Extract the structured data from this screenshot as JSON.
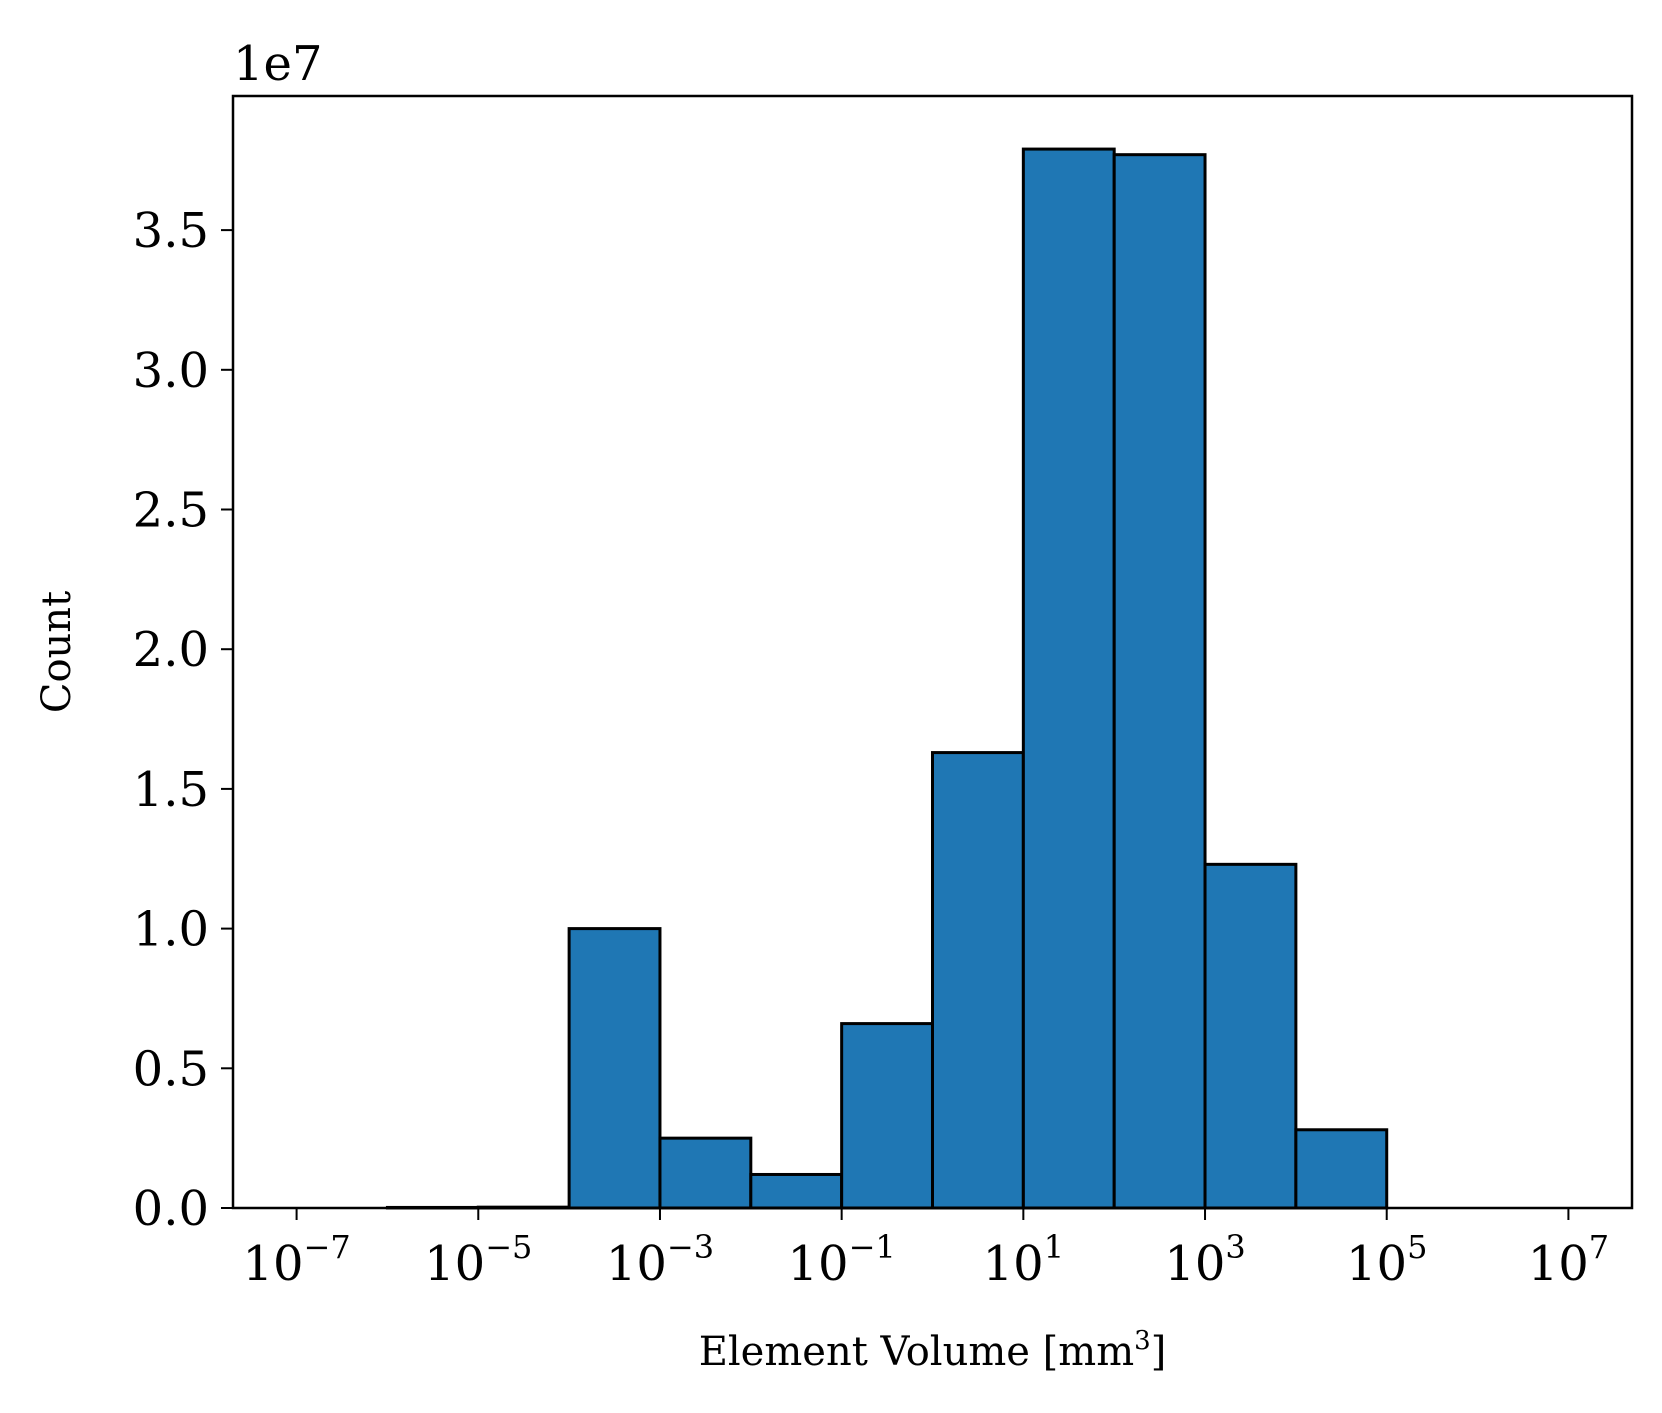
{
  "chart_data": {
    "type": "bar",
    "subtype": "histogram",
    "xlabel": "Element Volume [mm",
    "xlabel_superscript": "3",
    "xlabel_suffix": "]",
    "ylabel": "Count",
    "y_offset_label": "1e7",
    "x_scale": "log",
    "x_tick_labels": [
      {
        "base": "10",
        "exp": "−7",
        "value": 1e-07
      },
      {
        "base": "10",
        "exp": "−5",
        "value": 1e-05
      },
      {
        "base": "10",
        "exp": "−3",
        "value": 0.001
      },
      {
        "base": "10",
        "exp": "−1",
        "value": 0.1
      },
      {
        "base": "10",
        "exp": "1",
        "value": 10.0
      },
      {
        "base": "10",
        "exp": "3",
        "value": 1000.0
      },
      {
        "base": "10",
        "exp": "5",
        "value": 100000.0
      },
      {
        "base": "10",
        "exp": "7",
        "value": 10000000.0
      }
    ],
    "y_tick_labels": [
      "0.0",
      "0.5",
      "1.0",
      "1.5",
      "2.0",
      "2.5",
      "3.0",
      "3.5"
    ],
    "y_ticks": [
      0,
      0.5,
      1.0,
      1.5,
      2.0,
      2.5,
      3.0,
      3.5
    ],
    "xlim_log10": [
      -7.7,
      7.7
    ],
    "ylim": [
      0,
      3.98
    ],
    "bar_color": "#1f77b4",
    "edge_color": "#000000",
    "bins": [
      {
        "from": 1e-07,
        "to": 1e-06,
        "value": 0.0
      },
      {
        "from": 1e-06,
        "to": 1e-05,
        "value": 0.002
      },
      {
        "from": 1e-05,
        "to": 0.0001,
        "value": 0.003
      },
      {
        "from": 0.0001,
        "to": 0.001,
        "value": 1.0
      },
      {
        "from": 0.001,
        "to": 0.01,
        "value": 0.25
      },
      {
        "from": 0.01,
        "to": 0.1,
        "value": 0.12
      },
      {
        "from": 0.1,
        "to": 1.0,
        "value": 0.66
      },
      {
        "from": 1.0,
        "to": 10.0,
        "value": 1.63
      },
      {
        "from": 10.0,
        "to": 100.0,
        "value": 3.79
      },
      {
        "from": 100.0,
        "to": 1000.0,
        "value": 3.77
      },
      {
        "from": 1000.0,
        "to": 10000.0,
        "value": 1.23
      },
      {
        "from": 10000.0,
        "to": 100000.0,
        "value": 0.28
      },
      {
        "from": 100000.0,
        "to": 1000000.0,
        "value": 0.0
      },
      {
        "from": 1000000.0,
        "to": 10000000.0,
        "value": 0.0
      }
    ]
  }
}
